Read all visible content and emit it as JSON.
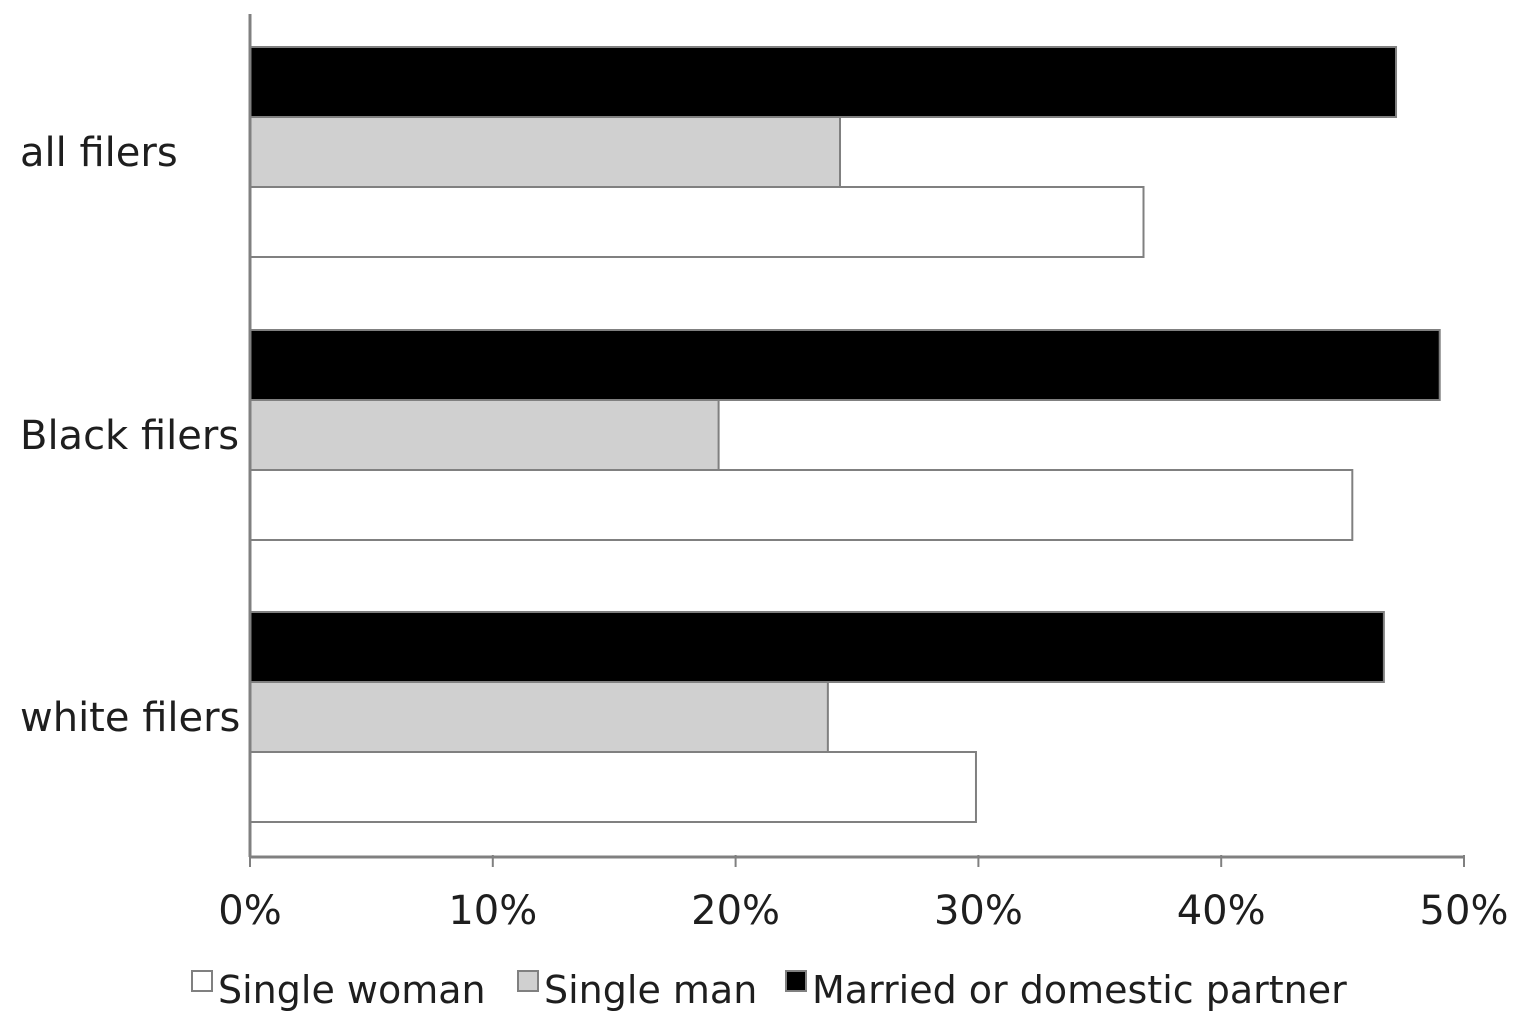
{
  "chart_data": {
    "type": "bar",
    "orientation": "horizontal",
    "title": "",
    "xlabel": "",
    "ylabel": "",
    "categories": [
      "all filers",
      "Black filers",
      "white filers"
    ],
    "xlim": [
      0,
      50
    ],
    "x_ticks": [
      0,
      10,
      20,
      30,
      40,
      50
    ],
    "x_tick_labels": [
      "0%",
      "10%",
      "20%",
      "30%",
      "40%",
      "50%"
    ],
    "grid": false,
    "legend_position": "bottom",
    "series": [
      {
        "name": "Single woman",
        "color": "#ffffff",
        "values": [
          36.8,
          45.4,
          29.9
        ]
      },
      {
        "name": "Single man",
        "color": "#d0d0d0",
        "values": [
          24.3,
          19.3,
          23.8
        ]
      },
      {
        "name": "Married or domestic partner",
        "color": "#000000",
        "values": [
          47.2,
          49.0,
          46.7
        ]
      }
    ]
  }
}
